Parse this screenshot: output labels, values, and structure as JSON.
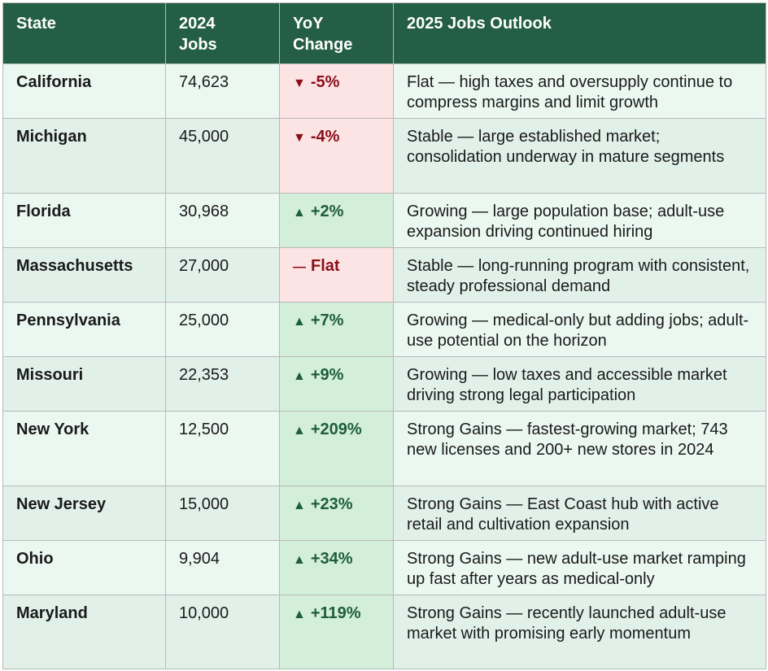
{
  "table": {
    "headers": [
      "State",
      "2024 Jobs",
      "YoY Change",
      "2025 Jobs Outlook"
    ],
    "header_lines": {
      "state": [
        "State"
      ],
      "jobs": [
        "2024",
        "Jobs"
      ],
      "change": [
        "YoY",
        "Change"
      ],
      "outlook": [
        "2025 Jobs Outlook"
      ]
    },
    "colors": {
      "header_bg": "#245e47",
      "row_bg_odd": "#ebf8f1",
      "row_bg_even": "#e1f1ea",
      "down_bg": "#fde4e4",
      "down_text": "#8a0f1a",
      "up_bg": "#d3eed9",
      "up_text": "#1e5e3a"
    },
    "rows": [
      {
        "state": "California",
        "jobs": "74,623",
        "direction": "down",
        "arrow": "▼",
        "change": "-5%",
        "outlook": "Flat — high taxes and oversupply continue to compress margins and limit growth"
      },
      {
        "state": "Michigan",
        "jobs": "45,000",
        "direction": "down",
        "arrow": "▼",
        "change": "-4%",
        "outlook": "Stable — large established market; consolidation underway in mature segments"
      },
      {
        "state": "Florida",
        "jobs": "30,968",
        "direction": "up",
        "arrow": "▲",
        "change": "+2%",
        "outlook": "Growing — large population base; adult-use expansion driving continued hiring"
      },
      {
        "state": "Massachusetts",
        "jobs": "27,000",
        "direction": "down",
        "arrow": "—",
        "change": "Flat",
        "outlook": "Stable — long-running program with consistent, steady professional demand"
      },
      {
        "state": "Pennsylvania",
        "jobs": "25,000",
        "direction": "up",
        "arrow": "▲",
        "change": "+7%",
        "outlook": "Growing — medical-only but adding jobs; adult-use potential on the horizon"
      },
      {
        "state": "Missouri",
        "jobs": "22,353",
        "direction": "up",
        "arrow": "▲",
        "change": "+9%",
        "outlook": "Growing — low taxes and accessible market driving strong legal participation"
      },
      {
        "state": "New York",
        "jobs": "12,500",
        "direction": "up",
        "arrow": "▲",
        "change": "+209%",
        "outlook": "Strong Gains — fastest-growing market; 743 new licenses and 200+ new stores in 2024"
      },
      {
        "state": "New Jersey",
        "jobs": "15,000",
        "direction": "up",
        "arrow": "▲",
        "change": "+23%",
        "outlook": "Strong Gains — East Coast hub with active retail and cultivation expansion"
      },
      {
        "state": "Ohio",
        "jobs": "9,904",
        "direction": "up",
        "arrow": "▲",
        "change": "+34%",
        "outlook": "Strong Gains — new adult-use market ramping up fast after years as medical-only"
      },
      {
        "state": "Maryland",
        "jobs": "10,000",
        "direction": "up",
        "arrow": "▲",
        "change": "+119%",
        "outlook": "Strong Gains — recently launched adult-use market with promising early momentum"
      }
    ]
  }
}
